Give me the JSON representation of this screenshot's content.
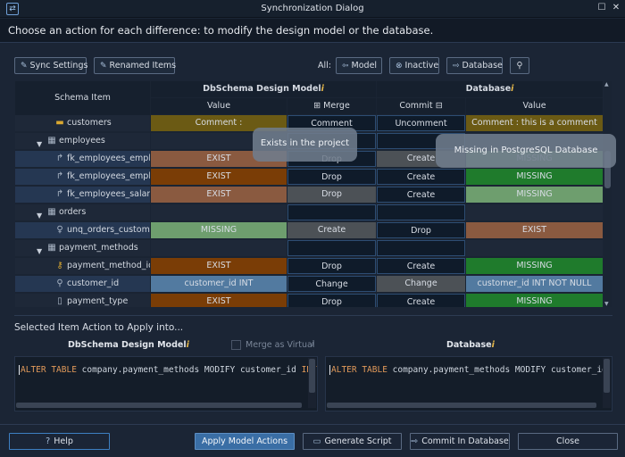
{
  "window": {
    "title": "Synchronization Dialog"
  },
  "instruction": "Choose an action for each difference: to modify the design model or the database.",
  "toolbar": {
    "sync_settings": "Sync Settings",
    "renamed_items": "Renamed Items",
    "all_label": "All:",
    "model": "Model",
    "inactive": "Inactive",
    "database": "Database"
  },
  "grid": {
    "headers": {
      "schema_item": "Schema Item",
      "design_model": "DbSchema Design Model",
      "database": "Database",
      "value": "Value",
      "merge": "Merge",
      "commit": "Commit",
      "db_value": "Value",
      "badge": "i"
    },
    "rows": [
      {
        "name": "customers",
        "icon": "comment-icon",
        "indent": 2,
        "expand": "",
        "model_value": "Comment :",
        "merge": "Comment",
        "commit": "Uncomment",
        "db_value": "Comment : this is a comment",
        "model_bg": "#6b5a14",
        "merge_bg": "#0f1b2a",
        "commit_bg": "#0f1b2a",
        "db_bg": "#6b5a14"
      },
      {
        "name": "employees",
        "icon": "table-icon",
        "indent": 1,
        "expand": "▼",
        "model_value": "",
        "merge": "",
        "commit": "",
        "db_value": "",
        "model_bg": "#1e2838",
        "merge_bg": "#0f1b2a",
        "commit_bg": "#0f1b2a",
        "db_bg": "#1e2838"
      },
      {
        "name": "fk_employees_empl...",
        "icon": "foreign-key-icon",
        "indent": 2,
        "expand": "",
        "model_value": "EXIST",
        "merge": "Drop",
        "commit": "Create",
        "db_value": "MISSING",
        "model_bg": "#8a5a40",
        "merge_bg": "#0f1b2a",
        "commit_bg": "#4c5156",
        "db_bg": "#6e9e6e"
      },
      {
        "name": "fk_employees_empl...",
        "icon": "foreign-key-icon",
        "indent": 2,
        "expand": "",
        "model_value": "EXIST",
        "merge": "Drop",
        "commit": "Create",
        "db_value": "MISSING",
        "model_bg": "#7a3d06",
        "merge_bg": "#0f1b2a",
        "commit_bg": "#0f1b2a",
        "db_bg": "#1f7b2c"
      },
      {
        "name": "fk_employees_salari...",
        "icon": "foreign-key-icon",
        "indent": 2,
        "expand": "",
        "model_value": "EXIST",
        "merge": "Drop",
        "commit": "Create",
        "db_value": "MISSING",
        "model_bg": "#8a5a40",
        "merge_bg": "#4c5156",
        "commit_bg": "#0f1b2a",
        "db_bg": "#6e9e6e"
      },
      {
        "name": "orders",
        "icon": "table-icon",
        "indent": 1,
        "expand": "▼",
        "model_value": "",
        "merge": "",
        "commit": "",
        "db_value": "",
        "model_bg": "#1e2838",
        "merge_bg": "#0f1b2a",
        "commit_bg": "#0f1b2a",
        "db_bg": "#1e2838"
      },
      {
        "name": "unq_orders_custom...",
        "icon": "unique-icon",
        "indent": 2,
        "expand": "",
        "model_value": "MISSING",
        "merge": "Create",
        "commit": "Drop",
        "db_value": "EXIST",
        "model_bg": "#6e9e6e",
        "merge_bg": "#4c5156",
        "commit_bg": "#0f1b2a",
        "db_bg": "#8a5a40"
      },
      {
        "name": "payment_methods",
        "icon": "table-icon",
        "indent": 1,
        "expand": "▼",
        "model_value": "",
        "merge": "",
        "commit": "",
        "db_value": "",
        "model_bg": "#1e2838",
        "merge_bg": "#0f1b2a",
        "commit_bg": "#0f1b2a",
        "db_bg": "#1e2838"
      },
      {
        "name": "payment_method_id",
        "icon": "key-icon",
        "indent": 2,
        "expand": "",
        "model_value": "EXIST",
        "merge": "Drop",
        "commit": "Create",
        "db_value": "MISSING",
        "model_bg": "#7a3d06",
        "merge_bg": "#0f1b2a",
        "commit_bg": "#0f1b2a",
        "db_bg": "#1f7b2c"
      },
      {
        "name": "customer_id",
        "icon": "search-icon",
        "indent": 2,
        "expand": "",
        "model_value": "customer_id INT",
        "merge": "Change",
        "commit": "Change",
        "db_value": "customer_id INT    NOT NULL",
        "model_bg": "#527aa0",
        "merge_bg": "#0f1b2a",
        "commit_bg": "#4c5156",
        "db_bg": "#527aa0"
      },
      {
        "name": "payment_type",
        "icon": "column-icon",
        "indent": 2,
        "expand": "",
        "model_value": "EXIST",
        "merge": "Drop",
        "commit": "Create",
        "db_value": "MISSING",
        "model_bg": "#7a3d06",
        "merge_bg": "#0f1b2a",
        "commit_bg": "#0f1b2a",
        "db_bg": "#1f7b2c"
      }
    ]
  },
  "tooltips": {
    "project": "Exists in the project",
    "database": "Missing in PostgreSQL Database"
  },
  "bottom": {
    "section_title": "Selected Item Action to Apply into...",
    "model_heading": "DbSchema Design Model",
    "db_heading": "Database",
    "merge_as_virtual": "Merge as Virtual",
    "model_sql_kw": "ALTER TABLE",
    "model_sql_rest": " company.payment_methods MODIFY customer_id ",
    "model_sql_type": "INT",
    "db_sql_kw": "ALTER TABLE",
    "db_sql_rest": " company.payment_methods MODIFY customer_id I"
  },
  "buttons": {
    "help": "Help",
    "apply": "Apply Model Actions",
    "generate": "Generate Script",
    "commit": "Commit In Database",
    "close": "Close"
  }
}
